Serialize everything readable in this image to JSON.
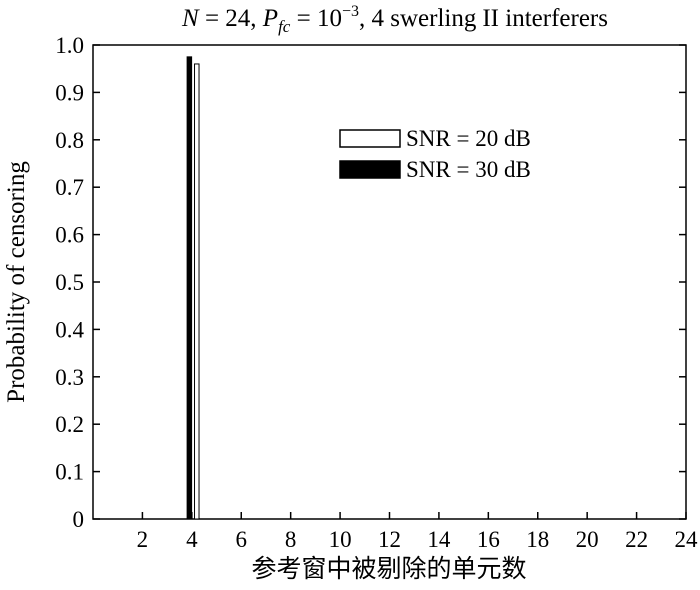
{
  "chart_data": {
    "type": "bar",
    "title_parts": {
      "n": "N",
      "n_val": " = 24, ",
      "p": "P",
      "p_sub": "fc",
      "p_val": " = 10",
      "p_exp": "−3",
      "rest": ", 4 swerling",
      "roman": "II",
      "tail": " interferers"
    },
    "xlabel": "参考窗中被剔除的单元数",
    "ylabel": "Probability of censoring",
    "xlim": [
      0,
      24
    ],
    "ylim": [
      0,
      1.0
    ],
    "x_ticks": [
      2,
      4,
      6,
      8,
      10,
      12,
      14,
      16,
      18,
      20,
      22,
      24
    ],
    "y_ticks": [
      0,
      0.1,
      0.2,
      0.3,
      0.4,
      0.5,
      0.6,
      0.7,
      0.8,
      0.9,
      1.0
    ],
    "y_tick_labels": [
      "0",
      "0.1",
      "0.2",
      "0.3",
      "0.4",
      "0.5",
      "0.6",
      "0.7",
      "0.8",
      "0.9",
      "1.0"
    ],
    "grid": false,
    "legend_position": "upper-right",
    "series": [
      {
        "name": "SNR = 20 dB",
        "color": "#ffffff",
        "stroke": "#000000",
        "x": [
          4.2
        ],
        "values": [
          0.96
        ]
      },
      {
        "name": "SNR = 30 dB",
        "color": "#000000",
        "stroke": "#000000",
        "x": [
          3.9
        ],
        "values": [
          0.975
        ]
      }
    ]
  }
}
